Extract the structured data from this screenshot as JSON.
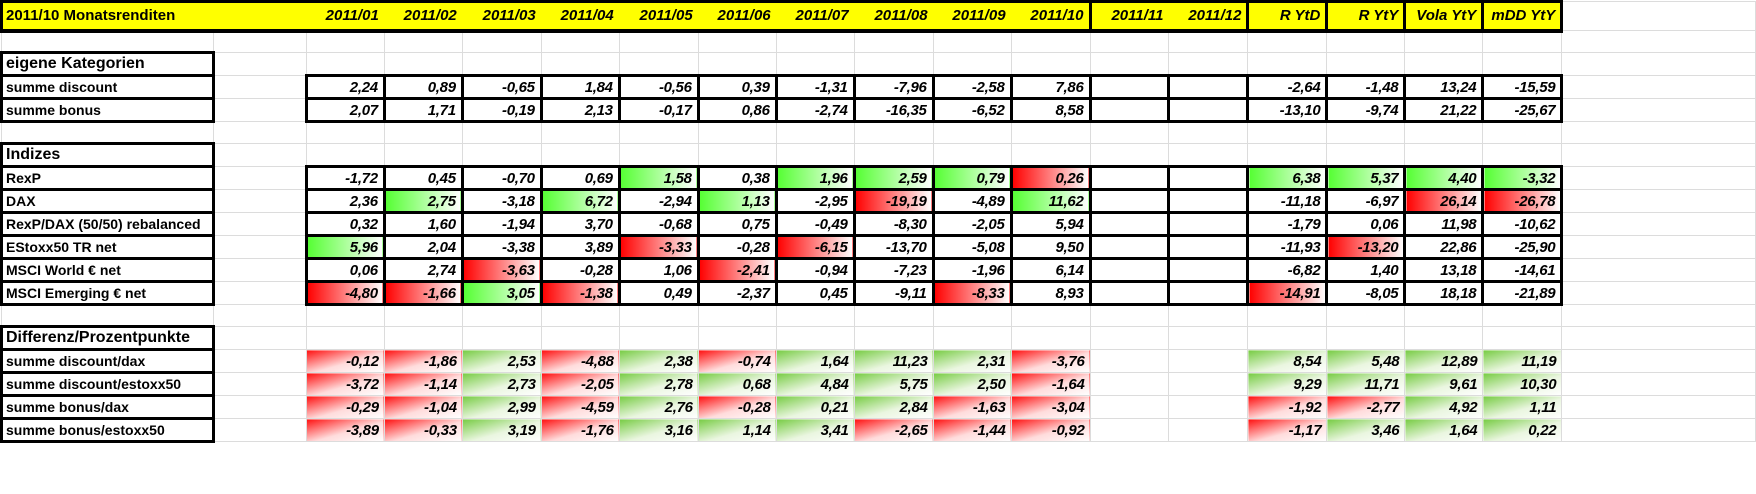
{
  "header": {
    "title": "2011/10 Monatsrenditen",
    "columns": [
      "2011/01",
      "2011/02",
      "2011/03",
      "2011/04",
      "2011/05",
      "2011/06",
      "2011/07",
      "2011/08",
      "2011/09",
      "2011/10",
      "2011/11",
      "2011/12",
      "R YtD",
      "R YtY",
      "Vola YtY",
      "mDD YtY"
    ]
  },
  "colors": {
    "header_bg": "#ffff00",
    "green": "#55ff33",
    "red": "#ff0000"
  },
  "sections": [
    {
      "title": "eigene Kategorien",
      "style": "boxed",
      "rows": [
        {
          "label": "summe discount",
          "values": [
            "2,24",
            "0,89",
            "-0,65",
            "1,84",
            "-0,56",
            "0,39",
            "-1,31",
            "-7,96",
            "-2,58",
            "7,86",
            "",
            "",
            "-2,64",
            "-1,48",
            "13,24",
            "-15,59"
          ],
          "highlight": [
            "",
            "",
            "",
            "",
            "",
            "",
            "",
            "",
            "",
            "",
            "",
            "",
            "",
            "",
            "",
            ""
          ]
        },
        {
          "label": "summe bonus",
          "values": [
            "2,07",
            "1,71",
            "-0,19",
            "2,13",
            "-0,17",
            "0,86",
            "-2,74",
            "-16,35",
            "-6,52",
            "8,58",
            "",
            "",
            "-13,10",
            "-9,74",
            "21,22",
            "-25,67"
          ],
          "highlight": [
            "",
            "",
            "",
            "",
            "",
            "",
            "",
            "",
            "",
            "",
            "",
            "",
            "",
            "",
            "",
            ""
          ]
        }
      ]
    },
    {
      "title": "Indizes",
      "style": "boxed",
      "rows": [
        {
          "label": "RexP",
          "values": [
            "-1,72",
            "0,45",
            "-0,70",
            "0,69",
            "1,58",
            "0,38",
            "1,96",
            "2,59",
            "0,79",
            "0,26",
            "",
            "",
            "6,38",
            "5,37",
            "4,40",
            "-3,32"
          ],
          "highlight": [
            "",
            "",
            "",
            "",
            "g",
            "",
            "g",
            "g",
            "g",
            "r",
            "",
            "",
            "g",
            "g",
            "g",
            "g"
          ]
        },
        {
          "label": "DAX",
          "values": [
            "2,36",
            "2,75",
            "-3,18",
            "6,72",
            "-2,94",
            "1,13",
            "-2,95",
            "-19,19",
            "-4,89",
            "11,62",
            "",
            "",
            "-11,18",
            "-6,97",
            "26,14",
            "-26,78"
          ],
          "highlight": [
            "",
            "g",
            "",
            "g",
            "",
            "g",
            "",
            "r",
            "",
            "g",
            "",
            "",
            "",
            "",
            "r",
            "r"
          ]
        },
        {
          "label": "RexP/DAX (50/50) rebalanced",
          "values": [
            "0,32",
            "1,60",
            "-1,94",
            "3,70",
            "-0,68",
            "0,75",
            "-0,49",
            "-8,30",
            "-2,05",
            "5,94",
            "",
            "",
            "-1,79",
            "0,06",
            "11,98",
            "-10,62"
          ],
          "highlight": [
            "",
            "",
            "",
            "",
            "",
            "",
            "",
            "",
            "",
            "",
            "",
            "",
            "",
            "",
            "",
            ""
          ]
        },
        {
          "label": "EStoxx50 TR net",
          "values": [
            "5,96",
            "2,04",
            "-3,38",
            "3,89",
            "-3,33",
            "-0,28",
            "-6,15",
            "-13,70",
            "-5,08",
            "9,50",
            "",
            "",
            "-11,93",
            "-13,20",
            "22,86",
            "-25,90"
          ],
          "highlight": [
            "g",
            "",
            "",
            "",
            "r",
            "",
            "r",
            "",
            "",
            "",
            "",
            "",
            "",
            "r",
            "",
            ""
          ]
        },
        {
          "label": "MSCI World € net",
          "values": [
            "0,06",
            "2,74",
            "-3,63",
            "-0,28",
            "1,06",
            "-2,41",
            "-0,94",
            "-7,23",
            "-1,96",
            "6,14",
            "",
            "",
            "-6,82",
            "1,40",
            "13,18",
            "-14,61"
          ],
          "highlight": [
            "",
            "",
            "r",
            "",
            "",
            "r",
            "",
            "",
            "",
            "",
            "",
            "",
            "",
            "",
            "",
            ""
          ]
        },
        {
          "label": "MSCI Emerging € net",
          "values": [
            "-4,80",
            "-1,66",
            "3,05",
            "-1,38",
            "0,49",
            "-2,37",
            "0,45",
            "-9,11",
            "-8,33",
            "8,93",
            "",
            "",
            "-14,91",
            "-8,05",
            "18,18",
            "-21,89"
          ],
          "highlight": [
            "r",
            "r",
            "g",
            "r",
            "",
            "",
            "",
            "",
            "r",
            "",
            "",
            "",
            "r",
            "",
            "",
            ""
          ]
        }
      ]
    },
    {
      "title": "Differenz/Prozentpunkte",
      "style": "diff",
      "rows": [
        {
          "label": "summe discount/dax",
          "values": [
            "-0,12",
            "-1,86",
            "2,53",
            "-4,88",
            "2,38",
            "-0,74",
            "1,64",
            "11,23",
            "2,31",
            "-3,76",
            "",
            "",
            "8,54",
            "5,48",
            "12,89",
            "11,19"
          ]
        },
        {
          "label": "summe discount/estoxx50",
          "values": [
            "-3,72",
            "-1,14",
            "2,73",
            "-2,05",
            "2,78",
            "0,68",
            "4,84",
            "5,75",
            "2,50",
            "-1,64",
            "",
            "",
            "9,29",
            "11,71",
            "9,61",
            "10,30"
          ]
        },
        {
          "label": "summe bonus/dax",
          "values": [
            "-0,29",
            "-1,04",
            "2,99",
            "-4,59",
            "2,76",
            "-0,28",
            "0,21",
            "2,84",
            "-1,63",
            "-3,04",
            "",
            "",
            "-1,92",
            "-2,77",
            "4,92",
            "1,11"
          ]
        },
        {
          "label": "summe bonus/estoxx50",
          "values": [
            "-3,89",
            "-0,33",
            "3,19",
            "-1,76",
            "3,16",
            "1,14",
            "3,41",
            "-2,65",
            "-1,44",
            "-0,92",
            "",
            "",
            "-1,17",
            "3,46",
            "1,64",
            "0,22"
          ]
        }
      ]
    }
  ]
}
